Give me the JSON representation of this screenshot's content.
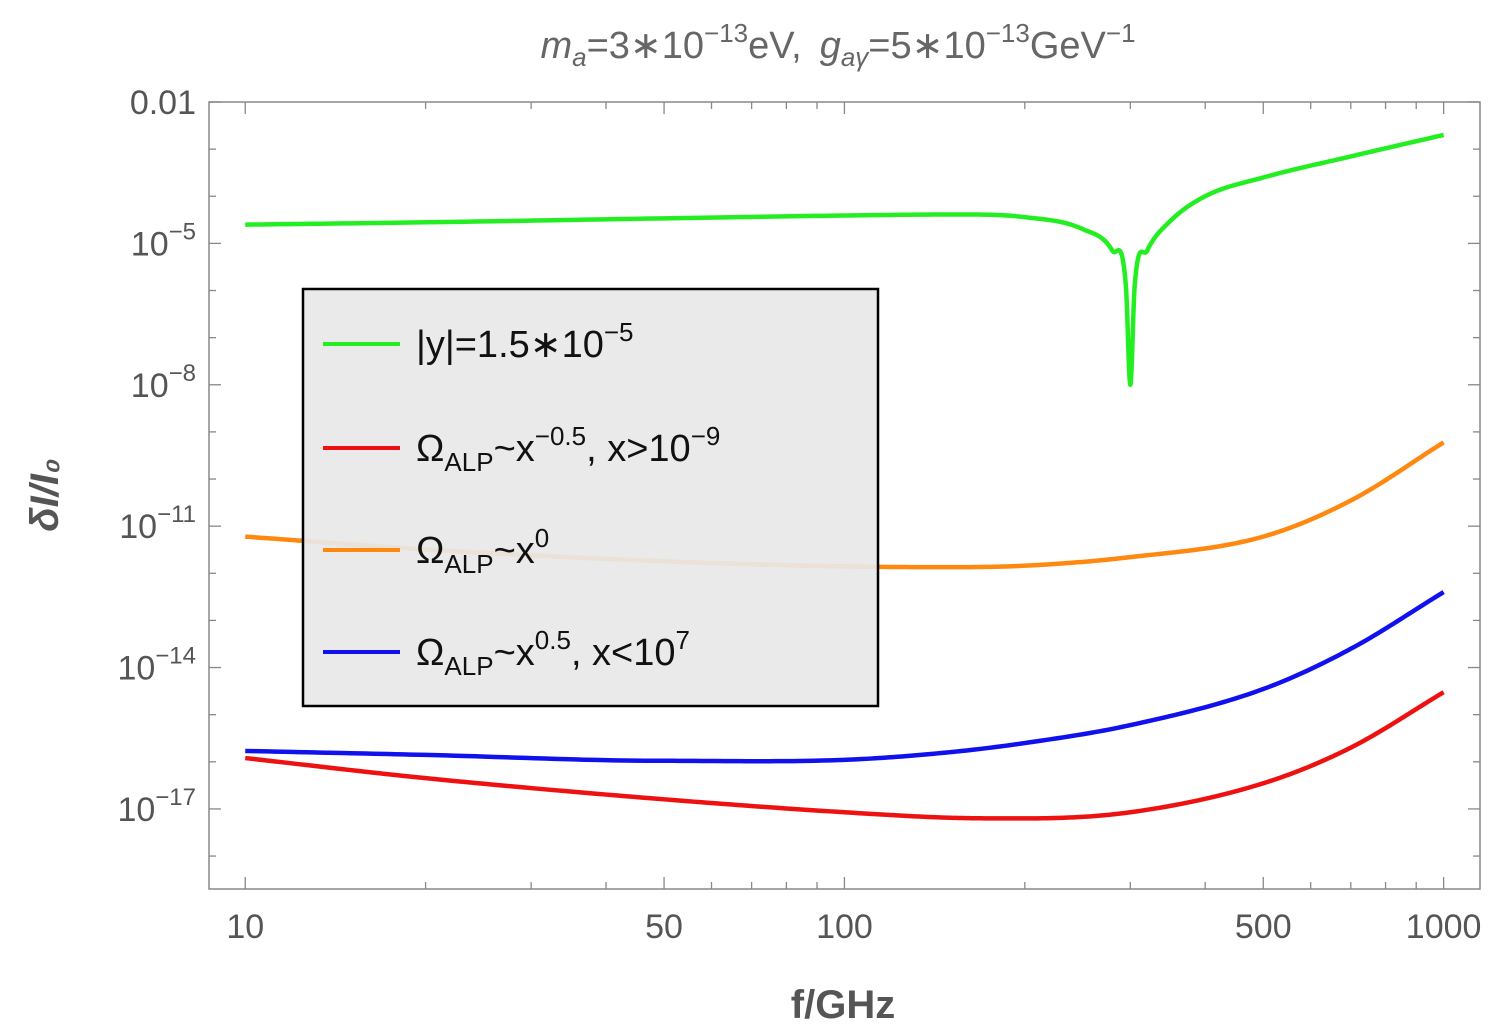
{
  "chart_data": {
    "type": "line",
    "title": {
      "m_symbol": "m",
      "m_sub": "a",
      "m_value": "=3∗10",
      "m_exp": "−13",
      "m_unit": "eV,",
      "g_symbol": "g",
      "g_sub": "aγ",
      "g_value": "=5∗10",
      "g_exp": "−13",
      "g_unit": "GeV",
      "g_unit_exp": "−1"
    },
    "xlabel": "f/GHz",
    "ylabel": "δI/I₀",
    "x_scale": "log",
    "y_scale": "log",
    "xlim": [
      8.7,
      1150
    ],
    "ylim": [
      2e-19,
      0.01
    ],
    "x_ticks": [
      {
        "value": 10,
        "label": "10"
      },
      {
        "value": 50,
        "label": "50"
      },
      {
        "value": 100,
        "label": "100"
      },
      {
        "value": 500,
        "label": "500"
      },
      {
        "value": 1000,
        "label": "1000"
      }
    ],
    "y_ticks": [
      {
        "value": 0.01,
        "mantissa": "0.01",
        "exp": ""
      },
      {
        "value": 1e-05,
        "mantissa": "10",
        "exp": "−5"
      },
      {
        "value": 1e-08,
        "mantissa": "10",
        "exp": "−8"
      },
      {
        "value": 1e-11,
        "mantissa": "10",
        "exp": "−11"
      },
      {
        "value": 1e-14,
        "mantissa": "10",
        "exp": "−14"
      },
      {
        "value": 1e-17,
        "mantissa": "10",
        "exp": "−17"
      }
    ],
    "grid": false,
    "legend_position": "left",
    "series": [
      {
        "name": "|y|=1.5∗10",
        "name_exp": "−5",
        "color": "#22ee22",
        "points": [
          [
            10,
            2.5e-05
          ],
          [
            20,
            2.8e-05
          ],
          [
            50,
            3.4e-05
          ],
          [
            100,
            3.9e-05
          ],
          [
            150,
            4.1e-05
          ],
          [
            200,
            3.6e-05
          ],
          [
            250,
            2e-05
          ],
          [
            280,
            7e-06
          ],
          [
            295,
            1.2e-06
          ],
          [
            300,
            1e-08
          ],
          [
            305,
            1.2e-06
          ],
          [
            320,
            7e-06
          ],
          [
            350,
            3e-05
          ],
          [
            400,
            0.0001
          ],
          [
            500,
            0.00025
          ],
          [
            700,
            0.0007
          ],
          [
            1000,
            0.002
          ]
        ]
      },
      {
        "name": "Ω",
        "name_sub": "ALP",
        "name_mid": "~x",
        "name_exp": "−0.5",
        "name_tail": ", x>10",
        "name_tail_exp": "−9",
        "color": "#ee1111",
        "points": [
          [
            10,
            1.2e-16
          ],
          [
            20,
            4.5e-17
          ],
          [
            50,
            1.6e-17
          ],
          [
            100,
            8.5e-18
          ],
          [
            150,
            6.5e-18
          ],
          [
            200,
            6.3e-18
          ],
          [
            300,
            8.5e-18
          ],
          [
            500,
            3.5e-17
          ],
          [
            700,
            2e-16
          ],
          [
            1000,
            3e-15
          ]
        ]
      },
      {
        "name": "Ω",
        "name_sub": "ALP",
        "name_mid": "~x",
        "name_exp": "0",
        "color": "#ff8811",
        "points": [
          [
            10,
            6e-12
          ],
          [
            20,
            3.2e-12
          ],
          [
            50,
            1.8e-12
          ],
          [
            100,
            1.4e-12
          ],
          [
            150,
            1.35e-12
          ],
          [
            200,
            1.45e-12
          ],
          [
            300,
            2.2e-12
          ],
          [
            500,
            6e-12
          ],
          [
            700,
            3.5e-11
          ],
          [
            1000,
            6e-10
          ]
        ]
      },
      {
        "name": "Ω",
        "name_sub": "ALP",
        "name_mid": "~x",
        "name_exp": "0.5",
        "name_tail": ", x<10",
        "name_tail_exp": "7",
        "color": "#1111ee",
        "points": [
          [
            10,
            1.7e-16
          ],
          [
            20,
            1.4e-16
          ],
          [
            50,
            1.05e-16
          ],
          [
            100,
            1.1e-16
          ],
          [
            150,
            1.6e-16
          ],
          [
            200,
            2.5e-16
          ],
          [
            300,
            6e-16
          ],
          [
            500,
            3.5e-15
          ],
          [
            700,
            2.5e-14
          ],
          [
            1000,
            4e-13
          ]
        ]
      }
    ]
  }
}
